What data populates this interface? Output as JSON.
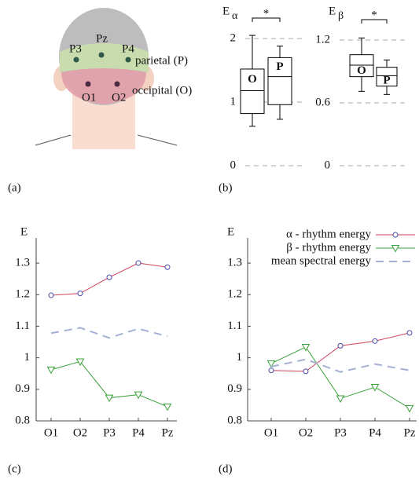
{
  "head_diagram": {
    "electrodes": [
      "P3",
      "Pz",
      "P4",
      "O1",
      "O2"
    ],
    "regions": [
      "parietal (P)",
      "occipital (O)"
    ]
  },
  "panel_labels": [
    "(a)",
    "(b)",
    "(c)",
    "(d)"
  ],
  "chart_data": [
    {
      "type": "box",
      "y_label": "E",
      "y_label_sub": "α",
      "categories": [
        "O",
        "P"
      ],
      "boxes": [
        {
          "min": 0.62,
          "q1": 0.82,
          "median": 1.18,
          "q3": 1.52,
          "max": 2.05
        },
        {
          "min": 0.73,
          "q1": 0.96,
          "median": 1.4,
          "q3": 1.7,
          "max": 1.88
        }
      ],
      "annotation": "*",
      "ylim": [
        0,
        2.1
      ],
      "yticks": [
        0,
        1,
        2
      ],
      "grid": true,
      "color": "#000000"
    },
    {
      "type": "box",
      "y_label": "E",
      "y_label_sub": "β",
      "categories": [
        "O",
        "P"
      ],
      "boxes": [
        {
          "min": 0.71,
          "q1": 0.85,
          "median": 0.96,
          "q3": 1.06,
          "max": 1.22
        },
        {
          "min": 0.68,
          "q1": 0.76,
          "median": 0.86,
          "q3": 0.94,
          "max": 1.01
        }
      ],
      "annotation": "*",
      "ylim": [
        0,
        1.26
      ],
      "yticks": [
        0,
        0.6,
        1.2
      ],
      "grid": true,
      "color": "#000000"
    },
    {
      "type": "line",
      "y_label": "E",
      "categories": [
        "O1",
        "O2",
        "P3",
        "P4",
        "Pz"
      ],
      "series": [
        {
          "name": "α - rhythm energy",
          "color": "#d0405a",
          "marker_color": "#4a4aa8",
          "marker": "circle",
          "values": [
            1.198,
            1.204,
            1.255,
            1.3,
            1.287
          ]
        },
        {
          "name": "β - rhythm energy",
          "color": "#3aa03a",
          "marker_color": "#3aa03a",
          "marker": "triangle-down",
          "values": [
            0.962,
            0.988,
            0.873,
            0.883,
            0.845
          ]
        },
        {
          "name": "mean spectral energy",
          "color": "#a4b0d4",
          "dashed": true,
          "values": [
            1.078,
            1.095,
            1.063,
            1.092,
            1.068
          ]
        }
      ],
      "ylim": [
        0.8,
        1.33
      ],
      "yticks": [
        0.8,
        0.9,
        1,
        1.1,
        1.2,
        1.3
      ],
      "legend": false
    },
    {
      "type": "line",
      "y_label": "E",
      "categories": [
        "O1",
        "O2",
        "P3",
        "P4",
        "Pz"
      ],
      "series": [
        {
          "name": "α - rhythm energy",
          "color": "#d0405a",
          "marker_color": "#4a4aa8",
          "marker": "circle",
          "values": [
            0.96,
            0.957,
            1.038,
            1.053,
            1.079
          ]
        },
        {
          "name": "β - rhythm energy",
          "color": "#3aa03a",
          "marker_color": "#3aa03a",
          "marker": "triangle-down",
          "values": [
            0.982,
            1.034,
            0.871,
            0.907,
            0.84
          ]
        },
        {
          "name": "mean spectral energy",
          "color": "#a4b0d4",
          "dashed": true,
          "values": [
            0.972,
            0.995,
            0.955,
            0.98,
            0.96
          ]
        }
      ],
      "ylim": [
        0.8,
        1.33
      ],
      "yticks": [
        0.8,
        0.9,
        1,
        1.1,
        1.2,
        1.3
      ],
      "legend": "upper right"
    }
  ]
}
